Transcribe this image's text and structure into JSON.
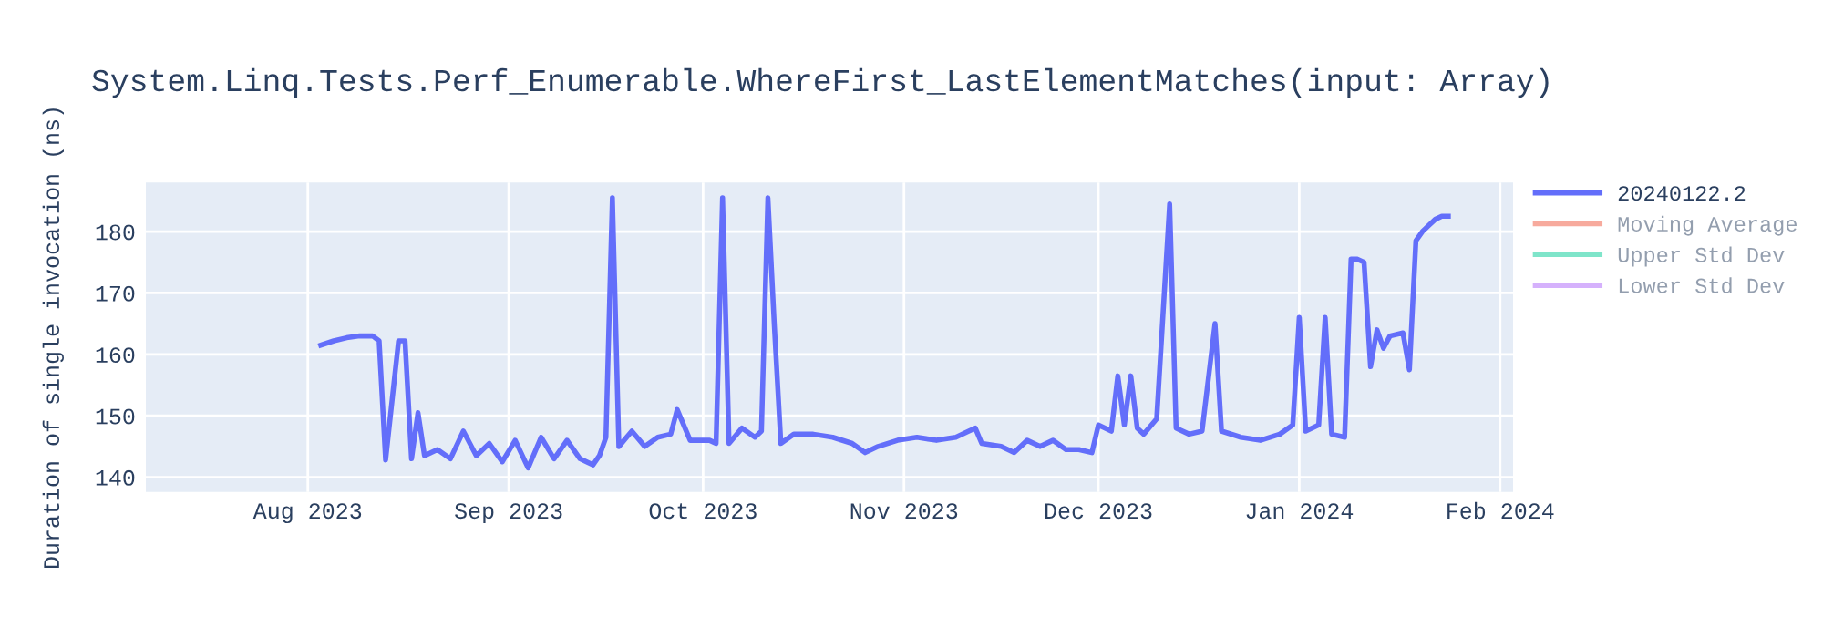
{
  "chart_data": {
    "type": "line",
    "title": "System.Linq.Tests.Perf_Enumerable.WhereFirst_LastElementMatches(input: Array)",
    "ylabel": "Duration of single invocation (ns)",
    "xlim": [
      "2023-07-07",
      "2024-02-03"
    ],
    "ylim": [
      137.6,
      188
    ],
    "xticks": [
      {
        "value": "2023-08-01",
        "label": "Aug 2023"
      },
      {
        "value": "2023-09-01",
        "label": "Sep 2023"
      },
      {
        "value": "2023-10-01",
        "label": "Oct 2023"
      },
      {
        "value": "2023-11-01",
        "label": "Nov 2023"
      },
      {
        "value": "2023-12-01",
        "label": "Dec 2023"
      },
      {
        "value": "2024-01-01",
        "label": "Jan 2024"
      },
      {
        "value": "2024-02-01",
        "label": "Feb 2024"
      }
    ],
    "yticks": [
      140,
      150,
      160,
      170,
      180
    ],
    "grid": true,
    "legend": "right",
    "series": [
      {
        "name": "20240122.2",
        "color": "#636efa",
        "x": [
          "2023-08-03",
          "2023-08-05",
          "2023-08-07",
          "2023-08-09",
          "2023-08-11",
          "2023-08-12",
          "2023-08-13",
          "2023-08-15",
          "2023-08-16",
          "2023-08-17",
          "2023-08-18",
          "2023-08-19",
          "2023-08-21",
          "2023-08-23",
          "2023-08-25",
          "2023-08-27",
          "2023-08-29",
          "2023-08-31",
          "2023-09-02",
          "2023-09-04",
          "2023-09-06",
          "2023-09-08",
          "2023-09-10",
          "2023-09-12",
          "2023-09-14",
          "2023-09-15",
          "2023-09-16",
          "2023-09-17",
          "2023-09-18",
          "2023-09-20",
          "2023-09-22",
          "2023-09-24",
          "2023-09-26",
          "2023-09-27",
          "2023-09-29",
          "2023-10-02",
          "2023-10-03",
          "2023-10-04",
          "2023-10-05",
          "2023-10-07",
          "2023-10-09",
          "2023-10-10",
          "2023-10-11",
          "2023-10-12",
          "2023-10-13",
          "2023-10-15",
          "2023-10-18",
          "2023-10-21",
          "2023-10-24",
          "2023-10-26",
          "2023-10-28",
          "2023-10-31",
          "2023-11-03",
          "2023-11-06",
          "2023-11-09",
          "2023-11-11",
          "2023-11-12",
          "2023-11-13",
          "2023-11-16",
          "2023-11-18",
          "2023-11-20",
          "2023-11-22",
          "2023-11-24",
          "2023-11-26",
          "2023-11-28",
          "2023-11-30",
          "2023-12-01",
          "2023-12-03",
          "2023-12-04",
          "2023-12-05",
          "2023-12-06",
          "2023-12-07",
          "2023-12-08",
          "2023-12-10",
          "2023-12-12",
          "2023-12-13",
          "2023-12-15",
          "2023-12-17",
          "2023-12-19",
          "2023-12-20",
          "2023-12-23",
          "2023-12-26",
          "2023-12-29",
          "2023-12-31",
          "2024-01-01",
          "2024-01-02",
          "2024-01-04",
          "2024-01-05",
          "2024-01-06",
          "2024-01-08",
          "2024-01-09",
          "2024-01-10",
          "2024-01-11",
          "2024-01-12",
          "2024-01-13",
          "2024-01-14",
          "2024-01-15",
          "2024-01-17",
          "2024-01-18",
          "2024-01-19",
          "2024-01-20",
          "2024-01-21",
          "2024-01-22",
          "2024-01-23",
          "2024-01-24"
        ],
        "values": [
          161.5,
          162.2,
          162.7,
          163.0,
          163.0,
          162.2,
          142.8,
          162.2,
          162.2,
          143.0,
          150.5,
          143.5,
          144.5,
          143.0,
          147.5,
          143.5,
          145.5,
          142.5,
          146.0,
          141.5,
          146.5,
          143.0,
          146.0,
          143.0,
          142.0,
          143.5,
          146.5,
          185.5,
          145.0,
          147.5,
          145.0,
          146.5,
          147.0,
          151.0,
          146.0,
          146.0,
          145.5,
          185.5,
          145.5,
          148.0,
          146.5,
          147.5,
          185.5,
          164.5,
          145.5,
          147.0,
          147.0,
          146.5,
          145.5,
          144.0,
          145.0,
          146.0,
          146.5,
          146.0,
          146.5,
          147.5,
          148.0,
          145.5,
          145.0,
          144.0,
          146.0,
          145.0,
          146.0,
          144.5,
          144.5,
          144.0,
          148.5,
          147.5,
          156.5,
          148.5,
          156.5,
          148.0,
          147.0,
          149.5,
          184.5,
          148.0,
          147.0,
          147.5,
          165.0,
          147.5,
          146.5,
          146.0,
          147.0,
          148.5,
          166.0,
          147.5,
          148.5,
          166.0,
          147.0,
          146.5,
          175.5,
          175.5,
          175.0,
          158.0,
          164.0,
          161.0,
          163.0,
          163.5,
          157.5,
          178.5,
          180.0,
          181.0,
          182.0,
          182.5,
          182.5
        ]
      },
      {
        "name": "Moving Average",
        "color": "#ef553b"
      },
      {
        "name": "Upper Std Dev",
        "color": "#00cc96"
      },
      {
        "name": "Lower Std Dev",
        "color": "#ab63fa"
      }
    ]
  }
}
